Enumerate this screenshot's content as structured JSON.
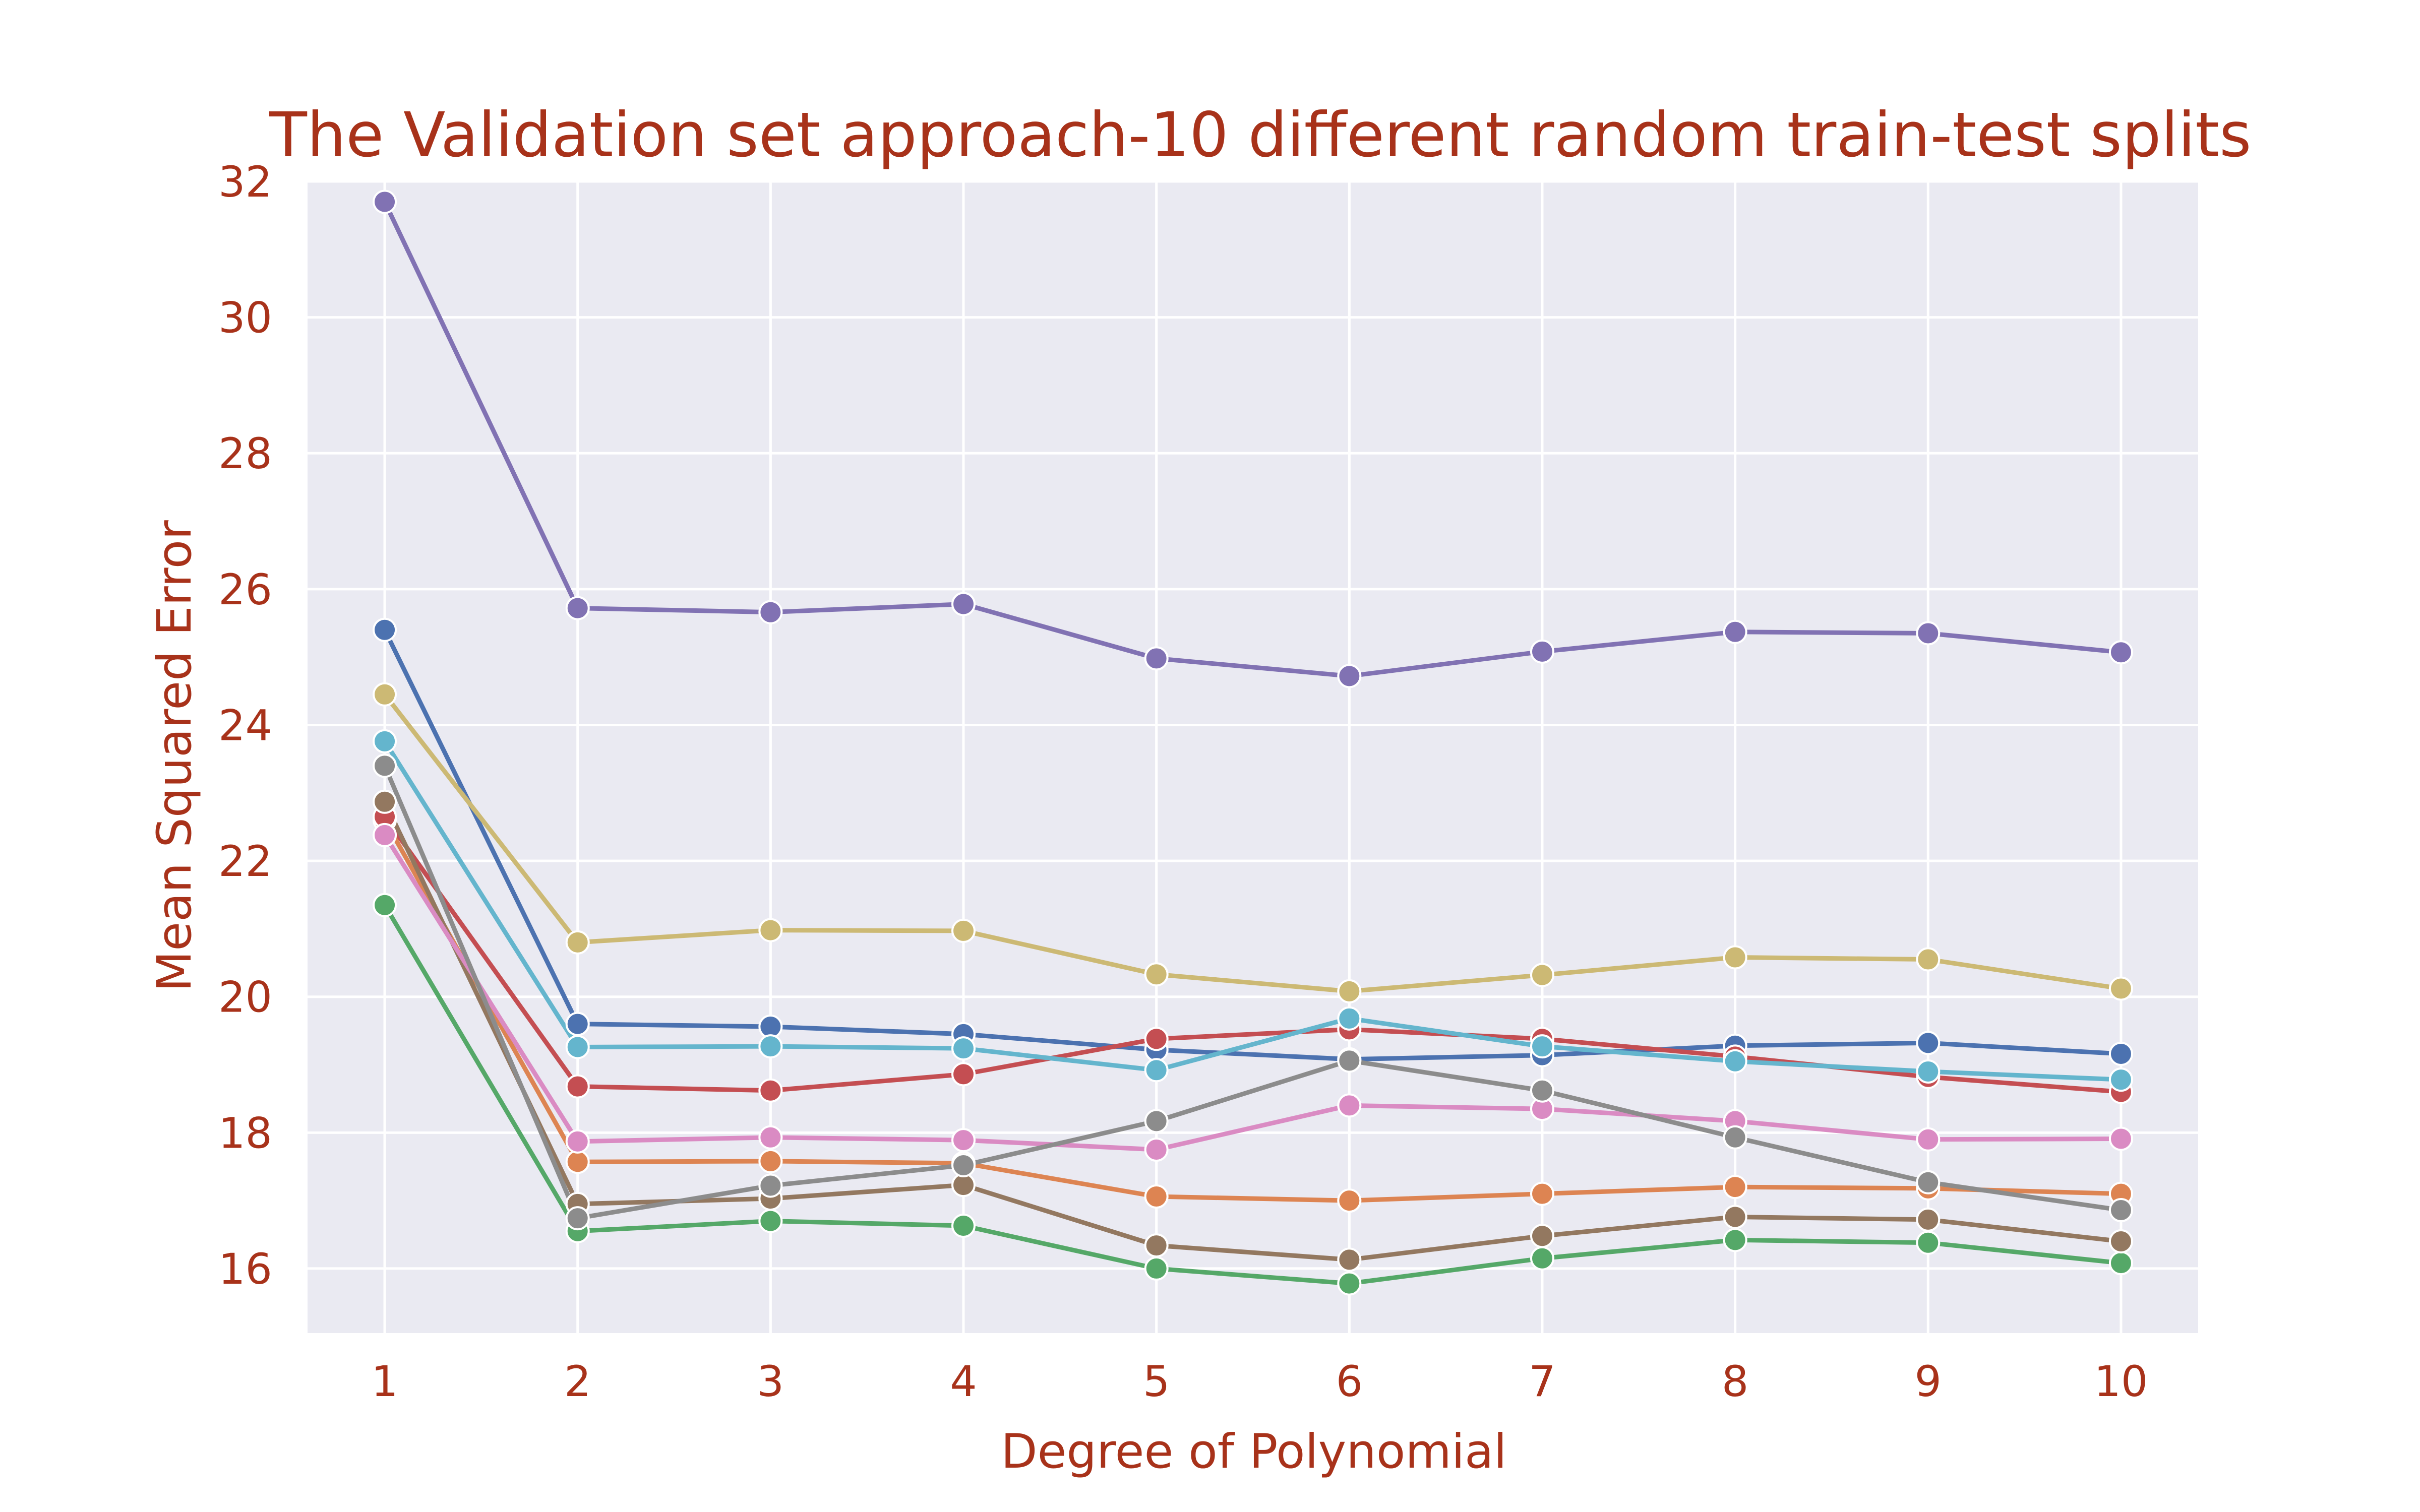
{
  "chart_data": {
    "type": "line",
    "title": "The Validation set approach-10 different random train-test splits",
    "xlabel": "Degree of Polynomial",
    "ylabel": "Mean Squared Error",
    "x": [
      1,
      2,
      3,
      4,
      5,
      6,
      7,
      8,
      9,
      10
    ],
    "xlim": [
      0.6,
      10.4
    ],
    "ylim": [
      15.05,
      32.0
    ],
    "yticks": [
      16,
      18,
      20,
      22,
      24,
      26,
      28,
      30,
      32
    ],
    "grid": true,
    "background": "#eaeaf2",
    "text_color": "#a8321a",
    "series": [
      {
        "color": "#4c72b0",
        "values": [
          25.4,
          19.6,
          19.56,
          19.45,
          19.22,
          19.08,
          19.14,
          19.28,
          19.32,
          19.16
        ]
      },
      {
        "color": "#dd8452",
        "values": [
          22.6,
          17.57,
          17.58,
          17.55,
          17.06,
          17.0,
          17.1,
          17.2,
          17.18,
          17.1
        ]
      },
      {
        "color": "#55a868",
        "values": [
          21.35,
          16.55,
          16.7,
          16.63,
          16.0,
          15.78,
          16.15,
          16.42,
          16.38,
          16.08
        ]
      },
      {
        "color": "#c44e52",
        "values": [
          22.65,
          18.68,
          18.62,
          18.86,
          19.38,
          19.52,
          19.38,
          19.12,
          18.82,
          18.6
        ]
      },
      {
        "color": "#8172b3",
        "values": [
          31.7,
          25.72,
          25.66,
          25.78,
          24.98,
          24.72,
          25.08,
          25.37,
          25.35,
          25.07
        ]
      },
      {
        "color": "#937860",
        "values": [
          22.87,
          16.95,
          17.03,
          17.23,
          16.34,
          16.13,
          16.48,
          16.76,
          16.72,
          16.4
        ]
      },
      {
        "color": "#da8bc3",
        "values": [
          22.38,
          17.87,
          17.93,
          17.89,
          17.75,
          18.4,
          18.35,
          18.17,
          17.9,
          17.91
        ]
      },
      {
        "color": "#8c8c8c",
        "values": [
          23.4,
          16.74,
          17.22,
          17.52,
          18.17,
          19.06,
          18.62,
          17.93,
          17.27,
          16.86
        ]
      },
      {
        "color": "#ccb974",
        "values": [
          24.45,
          20.8,
          20.98,
          20.97,
          20.33,
          20.08,
          20.32,
          20.58,
          20.55,
          20.12
        ]
      },
      {
        "color": "#64b5cd",
        "values": [
          23.76,
          19.26,
          19.27,
          19.24,
          18.92,
          19.68,
          19.27,
          19.05,
          18.9,
          18.78
        ]
      }
    ]
  }
}
